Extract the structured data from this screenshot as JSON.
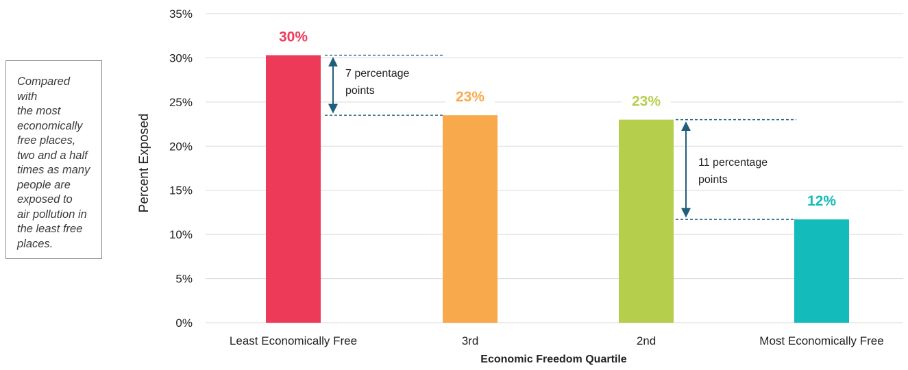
{
  "callout": {
    "text": "Compared with\nthe most\neconomically\nfree places,\ntwo and a half\ntimes as many\npeople are\nexposed to\nair pollution in\nthe least free\nplaces."
  },
  "chart_data": {
    "type": "bar",
    "categories": [
      "Least Economically Free",
      "3rd",
      "2nd",
      "Most Economically Free"
    ],
    "values": [
      30.3,
      23.5,
      23.0,
      11.7
    ],
    "data_labels": [
      "30%",
      "23%",
      "23%",
      "12%"
    ],
    "colors": [
      "#ee3a59",
      "#f8a94b",
      "#b5ce4c",
      "#14bbbb"
    ],
    "xlabel": "Economic Freedom Quartile",
    "ylabel": "Percent Exposed",
    "ylim": [
      0,
      35
    ],
    "yticks": [
      0,
      5,
      10,
      15,
      20,
      25,
      30,
      35
    ],
    "ytick_labels": [
      "0%",
      "5%",
      "10%",
      "15%",
      "20%",
      "25%",
      "30%",
      "35%"
    ],
    "grid": "horizontal",
    "annotations": [
      {
        "text_lines": [
          "7 percentage",
          "points"
        ],
        "from_value": 30.3,
        "to_value": 23.5,
        "between": [
          "Least Economically Free",
          "3rd"
        ]
      },
      {
        "text_lines": [
          "11 percentage",
          "points"
        ],
        "from_value": 23.0,
        "to_value": 11.7,
        "between": [
          "2nd",
          "Most Economically Free"
        ]
      }
    ]
  }
}
